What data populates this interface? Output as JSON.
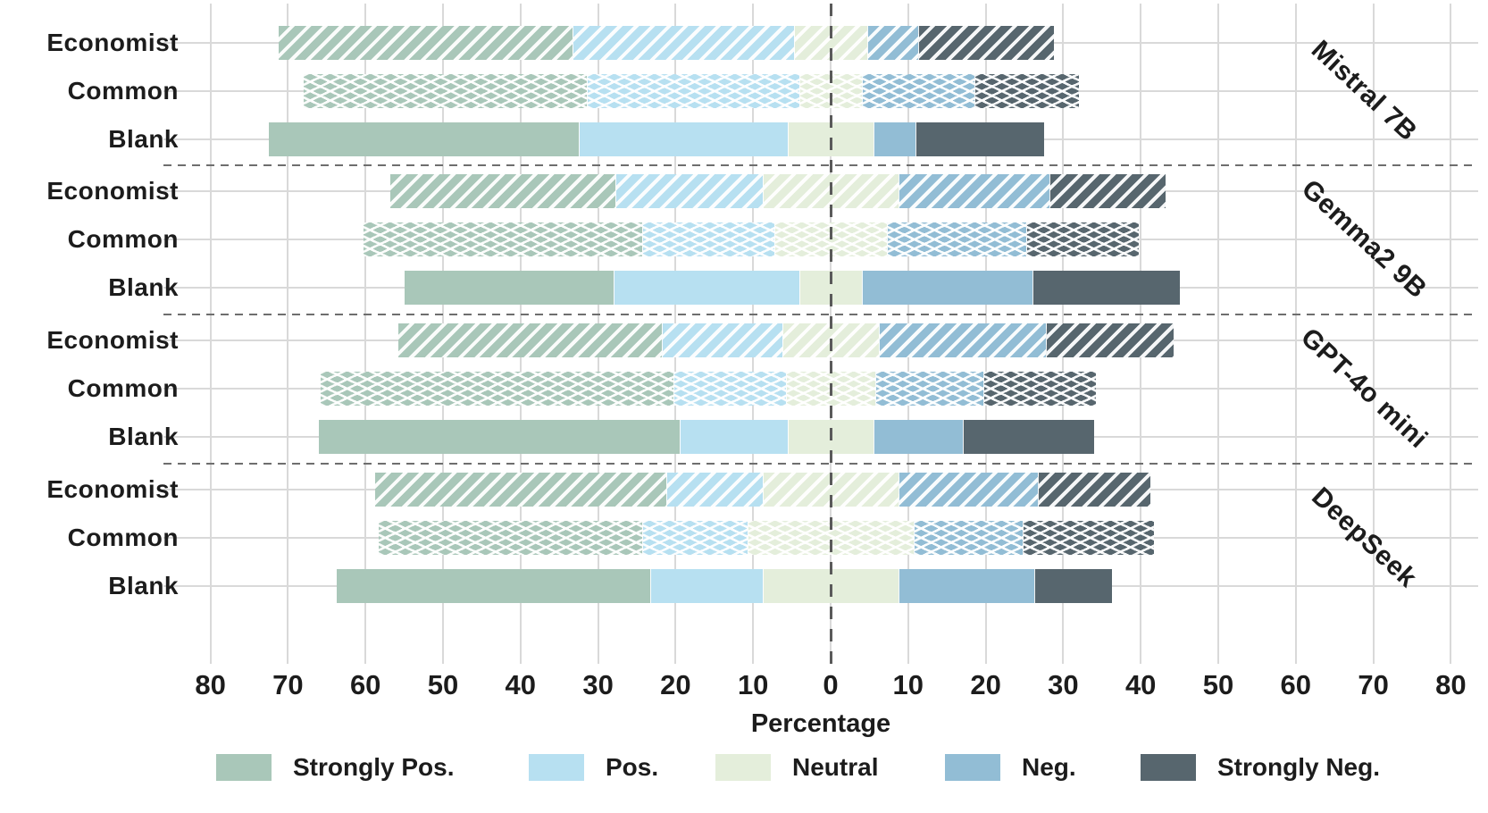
{
  "chart_data": {
    "type": "bar",
    "variant": "diverging-stacked-horizontal",
    "xlabel": "Percentage",
    "xlim": [
      -80,
      80
    ],
    "grid": true,
    "x_tick_values": [
      -80,
      -70,
      -60,
      -50,
      -40,
      -30,
      -20,
      -10,
      0,
      10,
      20,
      30,
      40,
      50,
      60,
      70,
      80
    ],
    "x_tick_labels": [
      "80",
      "70",
      "60",
      "50",
      "40",
      "30",
      "20",
      "10",
      "0",
      "10",
      "20",
      "30",
      "40",
      "50",
      "60",
      "70",
      "80"
    ],
    "series_order": [
      "Strongly Pos.",
      "Pos.",
      "Neutral",
      "Neg.",
      "Strongly Neg."
    ],
    "legend": [
      {
        "label": "Strongly Pos.",
        "color": "#a9c7b9"
      },
      {
        "label": "Pos.",
        "color": "#b7e0f1"
      },
      {
        "label": "Neutral",
        "color": "#e4eedb"
      },
      {
        "label": "Neg.",
        "color": "#92bdd5"
      },
      {
        "label": "Strongly Neg.",
        "color": "#57666e"
      }
    ],
    "legend_position": "bottom",
    "neutral_centered_on_zero": true,
    "groups": [
      {
        "model": "Mistral 7B",
        "rows": [
          {
            "condition": "Economist",
            "hatch": "diagonal",
            "values": [
              38.0,
              28.5,
              9.5,
              6.5,
              17.5
            ]
          },
          {
            "condition": "Common",
            "hatch": "cross",
            "values": [
              36.5,
              27.5,
              8.0,
              14.5,
              13.5
            ]
          },
          {
            "condition": "Blank",
            "hatch": "solid",
            "values": [
              40.0,
              27.0,
              11.0,
              5.5,
              16.5
            ]
          }
        ]
      },
      {
        "model": "Gemma2 9B",
        "rows": [
          {
            "condition": "Economist",
            "hatch": "diagonal",
            "values": [
              29.0,
              19.0,
              17.5,
              19.5,
              15.0
            ]
          },
          {
            "condition": "Common",
            "hatch": "cross",
            "values": [
              36.0,
              17.0,
              14.5,
              18.0,
              14.5
            ]
          },
          {
            "condition": "Blank",
            "hatch": "solid",
            "values": [
              27.0,
              24.0,
              8.0,
              22.0,
              19.0
            ]
          }
        ]
      },
      {
        "model": "GPT-4o mini",
        "rows": [
          {
            "condition": "Economist",
            "hatch": "diagonal",
            "values": [
              34.0,
              15.5,
              12.5,
              21.5,
              16.5
            ]
          },
          {
            "condition": "Common",
            "hatch": "cross",
            "values": [
              45.5,
              14.5,
              11.5,
              14.0,
              14.5
            ]
          },
          {
            "condition": "Blank",
            "hatch": "solid",
            "values": [
              46.5,
              14.0,
              11.0,
              11.5,
              17.0
            ]
          }
        ]
      },
      {
        "model": "DeepSeek",
        "rows": [
          {
            "condition": "Economist",
            "hatch": "diagonal",
            "values": [
              37.5,
              12.5,
              17.5,
              18.0,
              14.5
            ]
          },
          {
            "condition": "Common",
            "hatch": "cross",
            "values": [
              34.0,
              13.5,
              21.5,
              14.0,
              17.0
            ]
          },
          {
            "condition": "Blank",
            "hatch": "solid",
            "values": [
              40.5,
              14.5,
              17.5,
              17.5,
              10.0
            ]
          }
        ]
      }
    ]
  },
  "style_colors": {
    "grid": "#d9d9d9",
    "divider": "#6e6e6e",
    "zero_line": "#5a5a5a",
    "text": "#1c1c1c",
    "background": "#ffffff"
  }
}
